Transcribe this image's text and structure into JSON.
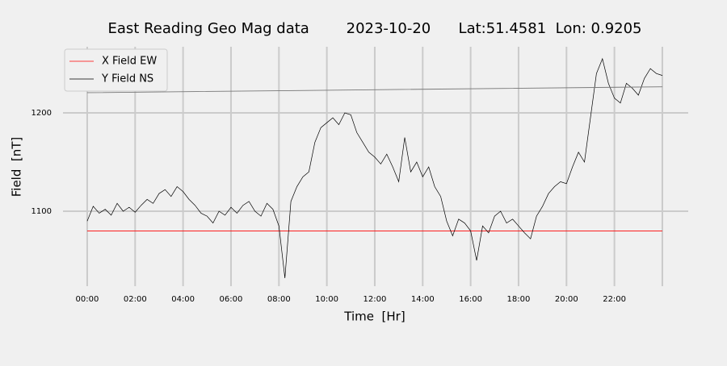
{
  "chart_data": {
    "type": "line",
    "title": "East Reading Geo Mag data        2023-10-20      Lat:51.4581  Lon: 0.9205",
    "x_label": "Time  [Hr]",
    "y_label": "Field  [nT]",
    "xlim": [
      -1.01,
      25.08
    ],
    "ylim": [
      1023.8,
      1267.2
    ],
    "xticks": [
      {
        "value": 0,
        "label": "00:00"
      },
      {
        "value": 2,
        "label": "02:00"
      },
      {
        "value": 4,
        "label": "04:00"
      },
      {
        "value": 6,
        "label": "06:00"
      },
      {
        "value": 8,
        "label": "08:00"
      },
      {
        "value": 10,
        "label": "10:00"
      },
      {
        "value": 12,
        "label": "12:00"
      },
      {
        "value": 14,
        "label": "14:00"
      },
      {
        "value": 16,
        "label": "16:00"
      },
      {
        "value": 18,
        "label": "18:00"
      },
      {
        "value": 20,
        "label": "20:00"
      },
      {
        "value": 22,
        "label": "22:00"
      },
      {
        "value": 24,
        "label": null
      }
    ],
    "yticks": [
      1100,
      1200
    ],
    "grid": true,
    "legend": "upper left",
    "series": [
      {
        "name": "X Field EW",
        "color": "#ff0000",
        "x": [
          0,
          24
        ],
        "values": [
          1080,
          1080
        ]
      },
      {
        "name": "Y Field NS",
        "color": "#000000",
        "x": [
          0,
          0.25,
          0.5,
          0.75,
          1,
          1.25,
          1.5,
          1.75,
          2,
          2.25,
          2.5,
          2.75,
          3,
          3.25,
          3.5,
          3.75,
          4,
          4.25,
          4.5,
          4.75,
          5,
          5.25,
          5.5,
          5.75,
          6,
          6.25,
          6.5,
          6.75,
          7,
          7.25,
          7.5,
          7.75,
          8,
          8.25,
          8.5,
          8.75,
          9,
          9.25,
          9.5,
          9.75,
          10,
          10.25,
          10.5,
          10.75,
          11,
          11.25,
          11.5,
          11.75,
          12,
          12.25,
          12.5,
          12.75,
          13,
          13.25,
          13.5,
          13.75,
          14,
          14.25,
          14.5,
          14.75,
          15,
          15.25,
          15.5,
          15.75,
          16,
          16.25,
          16.5,
          16.75,
          17,
          17.25,
          17.5,
          17.75,
          18,
          18.25,
          18.5,
          18.75,
          19,
          19.25,
          19.5,
          19.75,
          20,
          20.25,
          20.5,
          20.75,
          21,
          21.25,
          21.5,
          21.75,
          22,
          22.25,
          22.5,
          22.75,
          23,
          23.25,
          23.5,
          23.75,
          24
        ],
        "values": [
          1090,
          1105,
          1098,
          1102,
          1096,
          1108,
          1100,
          1104,
          1099,
          1106,
          1112,
          1108,
          1118,
          1122,
          1115,
          1125,
          1120,
          1112,
          1106,
          1098,
          1095,
          1088,
          1100,
          1096,
          1104,
          1098,
          1106,
          1110,
          1100,
          1095,
          1108,
          1102,
          1085,
          1032,
          1110,
          1125,
          1135,
          1140,
          1170,
          1185,
          1190,
          1195,
          1188,
          1200,
          1198,
          1180,
          1170,
          1160,
          1155,
          1148,
          1158,
          1145,
          1130,
          1175,
          1140,
          1150,
          1135,
          1145,
          1125,
          1115,
          1090,
          1075,
          1092,
          1088,
          1080,
          1050,
          1085,
          1078,
          1095,
          1100,
          1088,
          1092,
          1085,
          1078,
          1072,
          1095,
          1105,
          1118,
          1125,
          1130,
          1128,
          1145,
          1160,
          1150,
          1195,
          1240,
          1255,
          1230,
          1215,
          1210,
          1230,
          1225,
          1218,
          1235,
          1245,
          1240,
          1238
        ]
      },
      {
        "color": "#777777",
        "x": [
          0,
          12,
          24
        ],
        "values": [
          1220.5,
          1223.5,
          1226.5
        ]
      }
    ]
  }
}
